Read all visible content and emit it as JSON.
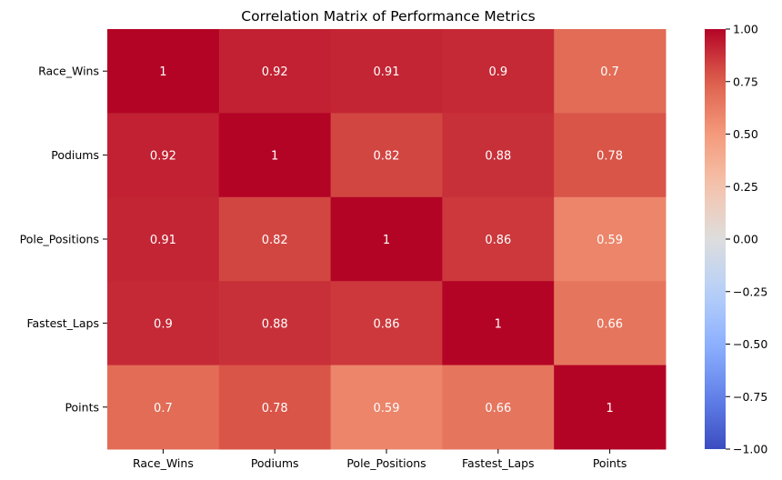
{
  "chart_data": {
    "type": "heatmap",
    "title": "Correlation Matrix of Performance Metrics",
    "row_labels": [
      "Race_Wins",
      "Podiums",
      "Pole_Positions",
      "Fastest_Laps",
      "Points"
    ],
    "col_labels": [
      "Race_Wins",
      "Podiums",
      "Pole_Positions",
      "Fastest_Laps",
      "Points"
    ],
    "values": [
      [
        1,
        0.92,
        0.91,
        0.9,
        0.7
      ],
      [
        0.92,
        1,
        0.82,
        0.88,
        0.78
      ],
      [
        0.91,
        0.82,
        1,
        0.86,
        0.59
      ],
      [
        0.9,
        0.88,
        0.86,
        1,
        0.66
      ],
      [
        0.7,
        0.78,
        0.59,
        0.66,
        1
      ]
    ],
    "annotations": true,
    "colormap": "coolwarm",
    "vmin": -1.0,
    "vmax": 1.0,
    "colorbar_ticks": [
      "1.00",
      "0.75",
      "0.50",
      "0.25",
      "0.00",
      "−0.25",
      "−0.50",
      "−0.75",
      "−1.00"
    ],
    "colorbar_tick_values": [
      1.0,
      0.75,
      0.5,
      0.25,
      0.0,
      -0.25,
      -0.5,
      -0.75,
      -1.0
    ]
  }
}
